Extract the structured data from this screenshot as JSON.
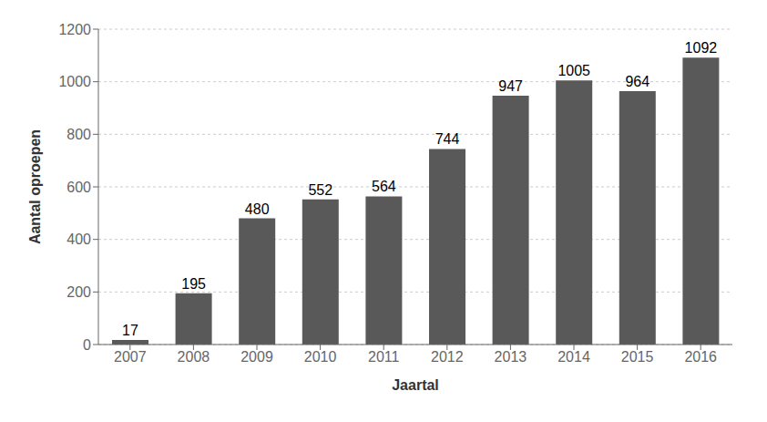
{
  "chart_data": {
    "type": "bar",
    "xlabel": "Jaartal",
    "ylabel": "Aantal oproepen",
    "categories": [
      "2007",
      "2008",
      "2009",
      "2010",
      "2011",
      "2012",
      "2013",
      "2014",
      "2015",
      "2016"
    ],
    "values": [
      17,
      195,
      480,
      552,
      564,
      744,
      947,
      1005,
      964,
      1092
    ],
    "color": "#595959",
    "ylim": [
      0,
      1200
    ],
    "yticks": [
      0,
      200,
      400,
      600,
      800,
      1000,
      1200
    ],
    "grid": true,
    "data_labels": true
  }
}
